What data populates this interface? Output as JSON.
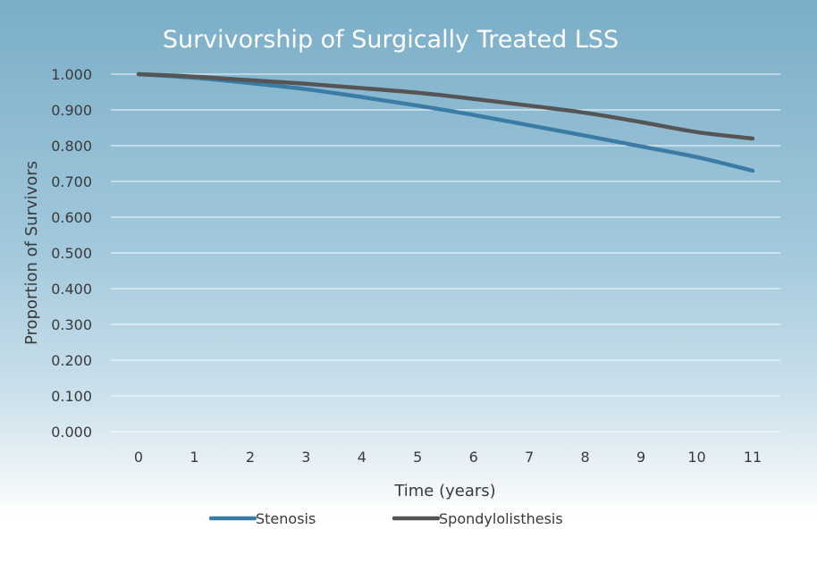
{
  "chart_data": {
    "type": "line",
    "title": "Survivorship of Surgically Treated LSS",
    "xlabel": "Time (years)",
    "ylabel": "Proportion of Survivors",
    "x": [
      0,
      1,
      2,
      3,
      4,
      5,
      6,
      7,
      8,
      9,
      10,
      11
    ],
    "ylim": [
      0,
      1
    ],
    "yticks": [
      "0.000",
      "0.100",
      "0.200",
      "0.300",
      "0.400",
      "0.500",
      "0.600",
      "0.700",
      "0.800",
      "0.900",
      "1.000"
    ],
    "grid": true,
    "legend_position": "bottom",
    "series": [
      {
        "name": "Stenosis",
        "color": "#3a7ca5",
        "values": [
          1.0,
          0.99,
          0.975,
          0.958,
          0.936,
          0.912,
          0.886,
          0.857,
          0.828,
          0.798,
          0.768,
          0.73
        ]
      },
      {
        "name": "Spondylolisthesis",
        "color": "#555555",
        "values": [
          1.0,
          0.993,
          0.983,
          0.973,
          0.961,
          0.948,
          0.931,
          0.912,
          0.892,
          0.866,
          0.838,
          0.82
        ]
      }
    ]
  }
}
